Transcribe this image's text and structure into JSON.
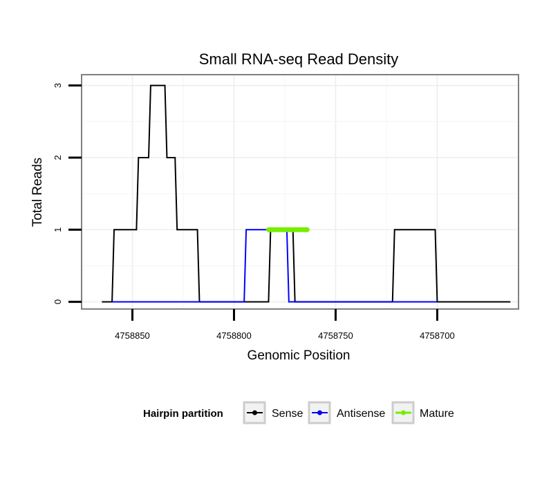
{
  "chart_data": {
    "type": "line",
    "title": "Small RNA-seq Read Density",
    "xlabel": "Genomic Position",
    "ylabel": "Total Reads",
    "x_reversed": true,
    "xlim": [
      4758875,
      4758660
    ],
    "ylim": [
      -0.1,
      3.15
    ],
    "x_ticks": [
      4758850,
      4758800,
      4758750,
      4758700
    ],
    "x_tick_labels": [
      "4758850",
      "4758800",
      "4758750",
      "4758700"
    ],
    "y_ticks": [
      0,
      1,
      2,
      3
    ],
    "y_tick_labels": [
      "0",
      "1",
      "2",
      "3"
    ],
    "grid": true,
    "legend_position": "bottom",
    "legend_title": "Hairpin partition",
    "series": [
      {
        "name": "Sense",
        "color": "#000000",
        "points": [
          [
            4758865,
            0
          ],
          [
            4758860,
            0
          ],
          [
            4758859,
            1
          ],
          [
            4758848,
            1
          ],
          [
            4758847,
            2
          ],
          [
            4758842,
            2
          ],
          [
            4758841,
            3
          ],
          [
            4758834,
            3
          ],
          [
            4758833,
            2
          ],
          [
            4758829,
            2
          ],
          [
            4758828,
            1
          ],
          [
            4758818,
            1
          ],
          [
            4758817,
            0
          ],
          [
            4758783,
            0
          ],
          [
            4758782,
            1
          ],
          [
            4758771,
            1
          ],
          [
            4758770,
            0
          ],
          [
            4758722,
            0
          ],
          [
            4758721,
            1
          ],
          [
            4758701,
            1
          ],
          [
            4758700,
            0
          ],
          [
            4758664,
            0
          ]
        ]
      },
      {
        "name": "Antisense",
        "color": "#0000ff",
        "points": [
          [
            4758860,
            0
          ],
          [
            4758795,
            0
          ],
          [
            4758794,
            1
          ],
          [
            4758774,
            1
          ],
          [
            4758773,
            0
          ],
          [
            4758700,
            0
          ]
        ]
      },
      {
        "name": "Mature",
        "color": "#76ee00",
        "points": [
          [
            4758783,
            1
          ],
          [
            4758764,
            1
          ]
        ]
      }
    ]
  }
}
